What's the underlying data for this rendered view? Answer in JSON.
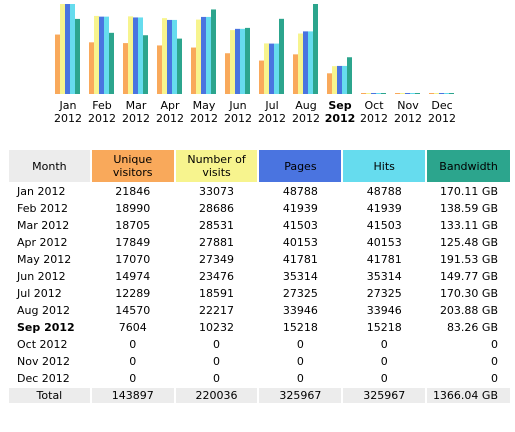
{
  "chart_data": {
    "type": "bar",
    "categories": [
      "Jan 2012",
      "Feb 2012",
      "Mar 2012",
      "Apr 2012",
      "May 2012",
      "Jun 2012",
      "Jul 2012",
      "Aug 2012",
      "Sep 2012",
      "Oct 2012",
      "Nov 2012",
      "Dec 2012"
    ],
    "x_month": [
      "Jan",
      "Feb",
      "Mar",
      "Apr",
      "May",
      "Jun",
      "Jul",
      "Aug",
      "Sep",
      "Oct",
      "Nov",
      "Dec"
    ],
    "x_year": [
      "2012",
      "2012",
      "2012",
      "2012",
      "2012",
      "2012",
      "2012",
      "2012",
      "2012",
      "2012",
      "2012",
      "2012"
    ],
    "current_index": 8,
    "series": [
      {
        "key": "unique",
        "color": "#f9a95b",
        "values": [
          21846,
          18990,
          18705,
          17849,
          17070,
          14974,
          12289,
          14570,
          7604,
          0,
          0,
          0
        ]
      },
      {
        "key": "visits",
        "color": "#f7f48e",
        "values": [
          33073,
          28686,
          28531,
          27881,
          27349,
          23476,
          18591,
          22217,
          10232,
          0,
          0,
          0
        ]
      },
      {
        "key": "pages",
        "color": "#4a74e0",
        "values": [
          48788,
          41939,
          41503,
          40153,
          41781,
          35314,
          27325,
          33946,
          15218,
          0,
          0,
          0
        ]
      },
      {
        "key": "hits",
        "color": "#66dcee",
        "values": [
          48788,
          41939,
          41503,
          40153,
          41781,
          35314,
          27325,
          33946,
          15218,
          0,
          0,
          0
        ]
      },
      {
        "key": "bandwidth",
        "color": "#2ca58d",
        "values": [
          170.11,
          138.59,
          133.11,
          125.48,
          191.53,
          149.77,
          170.3,
          203.88,
          83.26,
          0,
          0,
          0
        ]
      }
    ]
  },
  "table": {
    "headers": [
      {
        "key": "month",
        "label": "Month",
        "color": "#ececec"
      },
      {
        "key": "unique",
        "label": "Unique visitors",
        "color": "#f9a95b"
      },
      {
        "key": "visits",
        "label": "Number of visits",
        "color": "#f7f48e"
      },
      {
        "key": "pages",
        "label": "Pages",
        "color": "#4a74e0"
      },
      {
        "key": "hits",
        "label": "Hits",
        "color": "#66dcee"
      },
      {
        "key": "bandwidth",
        "label": "Bandwidth",
        "color": "#2ca58d"
      }
    ],
    "rows": [
      {
        "month": "Jan 2012",
        "unique": "21846",
        "visits": "33073",
        "pages": "48788",
        "hits": "48788",
        "bandwidth": "170.11 GB"
      },
      {
        "month": "Feb 2012",
        "unique": "18990",
        "visits": "28686",
        "pages": "41939",
        "hits": "41939",
        "bandwidth": "138.59 GB"
      },
      {
        "month": "Mar 2012",
        "unique": "18705",
        "visits": "28531",
        "pages": "41503",
        "hits": "41503",
        "bandwidth": "133.11 GB"
      },
      {
        "month": "Apr 2012",
        "unique": "17849",
        "visits": "27881",
        "pages": "40153",
        "hits": "40153",
        "bandwidth": "125.48 GB"
      },
      {
        "month": "May 2012",
        "unique": "17070",
        "visits": "27349",
        "pages": "41781",
        "hits": "41781",
        "bandwidth": "191.53 GB"
      },
      {
        "month": "Jun 2012",
        "unique": "14974",
        "visits": "23476",
        "pages": "35314",
        "hits": "35314",
        "bandwidth": "149.77 GB"
      },
      {
        "month": "Jul 2012",
        "unique": "12289",
        "visits": "18591",
        "pages": "27325",
        "hits": "27325",
        "bandwidth": "170.30 GB"
      },
      {
        "month": "Aug 2012",
        "unique": "14570",
        "visits": "22217",
        "pages": "33946",
        "hits": "33946",
        "bandwidth": "203.88 GB"
      },
      {
        "month": "Sep 2012",
        "unique": "7604",
        "visits": "10232",
        "pages": "15218",
        "hits": "15218",
        "bandwidth": "83.26 GB",
        "current": true
      },
      {
        "month": "Oct 2012",
        "unique": "0",
        "visits": "0",
        "pages": "0",
        "hits": "0",
        "bandwidth": "0"
      },
      {
        "month": "Nov 2012",
        "unique": "0",
        "visits": "0",
        "pages": "0",
        "hits": "0",
        "bandwidth": "0"
      },
      {
        "month": "Dec 2012",
        "unique": "0",
        "visits": "0",
        "pages": "0",
        "hits": "0",
        "bandwidth": "0"
      }
    ],
    "total": {
      "month": "Total",
      "unique": "143897",
      "visits": "220036",
      "pages": "325967",
      "hits": "325967",
      "bandwidth": "1366.04 GB"
    }
  }
}
